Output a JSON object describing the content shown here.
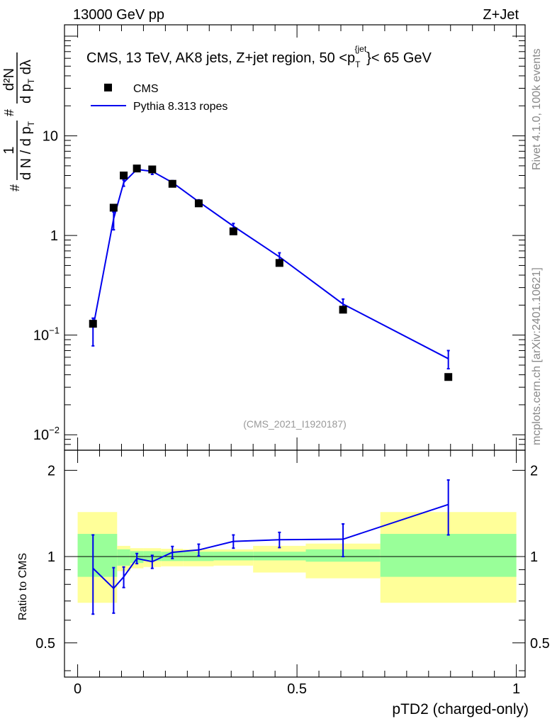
{
  "header": {
    "energy_label": "13000 GeV pp",
    "process_label": "Z+Jet"
  },
  "side_text": {
    "rivet": "Rivet 4.1.0,  100k events",
    "source": "mcplots.cern.ch [arXiv:2401.10621]"
  },
  "chart_data": {
    "type": "line",
    "title": "CMS, 13 TeV, AK8 jets, Z+jet region, 50 <p",
    "title_sub": "T",
    "title_sup": "{jet",
    "title_end": "}< 65 GeV",
    "analysis_tag": "(CMS_2021_I1920187)",
    "xlabel": "pTD2 (charged-only)",
    "ylabel": {
      "prefix": "#",
      "frac1": {
        "num": "1",
        "den": "d N / d p",
        "den_sub": "T"
      },
      "mid": "#",
      "frac2": {
        "num": "d²N",
        "den": "d p",
        "den_sub": "T",
        "den_end": " dλ"
      }
    },
    "ratio_ylabel": "Ratio to CMS",
    "xlim": [
      -0.03,
      1.02
    ],
    "ylim_main": [
      0.007,
      130
    ],
    "ylim_ratio": [
      0.38,
      2.35
    ],
    "legend": [
      {
        "name": "CMS",
        "marker": "square",
        "color": "#000000"
      },
      {
        "name": "Pythia 8.313 ropes",
        "marker": "line",
        "color": "#0000ee"
      }
    ],
    "x_ticks": [
      {
        "value": 0,
        "label": "0"
      },
      {
        "value": 0.5,
        "label": "0.5"
      },
      {
        "value": 1,
        "label": "1"
      }
    ],
    "y_ticks_main": [
      {
        "value": 0.01,
        "label": "10",
        "sup": "−2"
      },
      {
        "value": 0.1,
        "label": "10",
        "sup": "−1"
      },
      {
        "value": 1,
        "label": "1",
        "sup": ""
      },
      {
        "value": 10,
        "label": "10",
        "sup": ""
      }
    ],
    "y_ticks_ratio": [
      {
        "value": 0.5,
        "label": "0.5"
      },
      {
        "value": 1,
        "label": "1"
      },
      {
        "value": 2,
        "label": "2"
      }
    ],
    "cms": {
      "x": [
        0.035,
        0.082,
        0.105,
        0.135,
        0.17,
        0.216,
        0.276,
        0.355,
        0.46,
        0.605,
        0.845
      ],
      "y": [
        0.13,
        1.9,
        4.0,
        4.7,
        4.6,
        3.3,
        2.1,
        1.1,
        0.53,
        0.18,
        0.038
      ]
    },
    "pythia": {
      "x": [
        0.035,
        0.082,
        0.105,
        0.135,
        0.17,
        0.216,
        0.276,
        0.355,
        0.46,
        0.605,
        0.845
      ],
      "y": [
        0.118,
        1.47,
        3.4,
        4.6,
        4.4,
        3.4,
        2.18,
        1.24,
        0.61,
        0.205,
        0.058
      ],
      "yerr_lo": [
        0.04,
        0.33,
        0.28,
        0.2,
        0.3,
        0.18,
        0.1,
        0.08,
        0.06,
        0.025,
        0.012
      ],
      "yerr_hi": [
        0.03,
        0.25,
        0.2,
        0.15,
        0.2,
        0.15,
        0.1,
        0.08,
        0.06,
        0.025,
        0.012
      ]
    },
    "ratio": {
      "x": [
        0.035,
        0.082,
        0.105,
        0.135,
        0.17,
        0.216,
        0.276,
        0.355,
        0.46,
        0.605,
        0.845
      ],
      "y": [
        0.91,
        0.775,
        0.85,
        0.985,
        0.96,
        1.035,
        1.055,
        1.13,
        1.145,
        1.15,
        1.52
      ],
      "err_lo": [
        0.28,
        0.14,
        0.07,
        0.04,
        0.05,
        0.05,
        0.05,
        0.06,
        0.07,
        0.15,
        0.33
      ],
      "err_hi": [
        0.28,
        0.14,
        0.07,
        0.04,
        0.05,
        0.05,
        0.05,
        0.06,
        0.07,
        0.15,
        0.33
      ]
    },
    "bands": {
      "edges": [
        0.0,
        0.09,
        0.12,
        0.15,
        0.19,
        0.24,
        0.31,
        0.4,
        0.52,
        0.69,
        1.0
      ],
      "stat_lo": [
        0.85,
        0.93,
        0.95,
        0.965,
        0.965,
        0.965,
        0.97,
        0.97,
        0.96,
        0.85
      ],
      "stat_hi": [
        1.2,
        1.06,
        1.045,
        1.045,
        1.04,
        1.04,
        1.04,
        1.04,
        1.06,
        1.2
      ],
      "tot_lo": [
        0.69,
        0.89,
        0.91,
        0.92,
        0.925,
        0.925,
        0.93,
        0.88,
        0.84,
        0.69
      ],
      "tot_hi": [
        1.43,
        1.09,
        1.07,
        1.07,
        1.065,
        1.06,
        1.06,
        1.09,
        1.11,
        1.43
      ]
    },
    "colors": {
      "data": "#000000",
      "mc": "#0000ee",
      "stat_band": "#99ff99",
      "total_band": "#ffff99",
      "tag": "#999999",
      "side": "#888888"
    }
  }
}
